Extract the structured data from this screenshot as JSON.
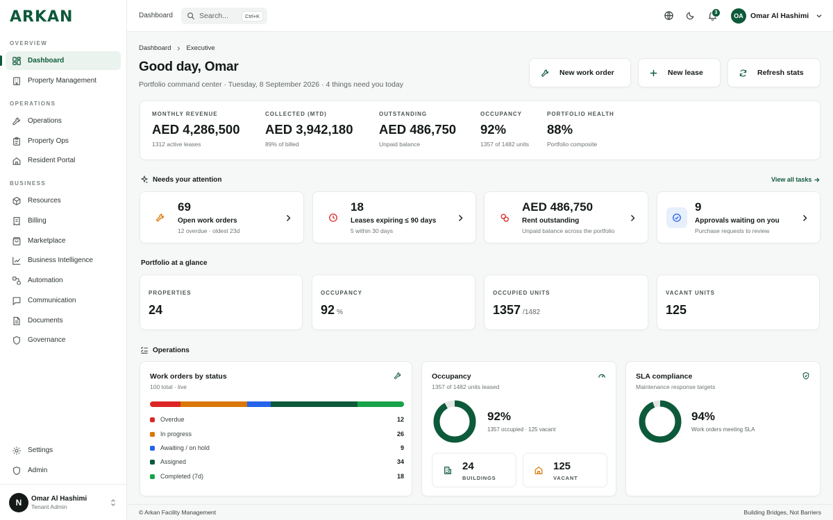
{
  "brand": {
    "name": "ARKAN",
    "accent": "#0d5a3b"
  },
  "sidebar": {
    "sections": [
      {
        "label": "OVERVIEW"
      },
      {
        "label": "OPERATIONS"
      },
      {
        "label": "BUSINESS"
      }
    ],
    "items": [
      {
        "label": "Dashboard",
        "icon": "dashboard-icon",
        "active": true
      },
      {
        "label": "Property Management",
        "icon": "building-icon"
      },
      {
        "label": "Operations",
        "icon": "wrench-icon"
      },
      {
        "label": "Property Ops",
        "icon": "clipboard-icon"
      },
      {
        "label": "Resident Portal",
        "icon": "home-icon"
      },
      {
        "label": "Resources",
        "icon": "box-icon"
      },
      {
        "label": "Billing",
        "icon": "receipt-icon"
      },
      {
        "label": "Marketplace",
        "icon": "shopping-bag-icon"
      },
      {
        "label": "Business Intelligence",
        "icon": "line-chart-icon"
      },
      {
        "label": "Automation",
        "icon": "workflow-icon"
      },
      {
        "label": "Communication",
        "icon": "message-icon"
      },
      {
        "label": "Documents",
        "icon": "document-icon"
      },
      {
        "label": "Governance",
        "icon": "shield-icon"
      },
      {
        "label": "Settings",
        "icon": "gear-icon"
      },
      {
        "label": "Admin",
        "icon": "admin-shield-icon"
      }
    ],
    "user": {
      "initial": "N",
      "name": "Omar Al Hashimi",
      "role": "Tenant Admin"
    }
  },
  "topbar": {
    "breadcrumb": "Dashboard",
    "search": {
      "placeholder": "Search...",
      "shortcut": "Ctrl+K"
    },
    "notifications": "3",
    "user": {
      "initials": "OA",
      "name": "Omar Al Hashimi"
    }
  },
  "header": {
    "breadcrumb": [
      "Dashboard",
      "Executive"
    ],
    "title": "Good day, Omar",
    "subtitle": "Portfolio command center · Tuesday, 8 September 2026 · 4 things need you today",
    "actions": [
      "New work order",
      "New lease",
      "Refresh stats"
    ]
  },
  "kpis": [
    {
      "label": "MONTHLY REVENUE",
      "value": "AED 4,286,500",
      "sub": "1312 active leases"
    },
    {
      "label": "COLLECTED (MTD)",
      "value": "AED 3,942,180",
      "sub": "89% of billed"
    },
    {
      "label": "OUTSTANDING",
      "value": "AED 486,750",
      "sub": "Unpaid balance"
    },
    {
      "label": "OCCUPANCY",
      "value": "92%",
      "sub": "1357 of 1482 units"
    },
    {
      "label": "PORTFOLIO HEALTH",
      "value": "88%",
      "sub": "Portfolio composite"
    }
  ],
  "attention": {
    "title": "Needs your attention",
    "view_all": "View all tasks",
    "cards": [
      {
        "value": "69",
        "title": "Open work orders",
        "sub": "12 overdue · oldest 23d",
        "icon": "wrench-icon",
        "color": "#d97706"
      },
      {
        "value": "18",
        "title": "Leases expiring ≤ 90 days",
        "sub": "5 within 30 days",
        "icon": "clock-icon",
        "color": "#dc2626"
      },
      {
        "value": "AED 486,750",
        "title": "Rent outstanding",
        "sub": "Unpaid balance across the portfolio",
        "icon": "coins-icon",
        "color": "#dc2626"
      },
      {
        "value": "9",
        "title": "Approvals waiting on you",
        "sub": "Purchase requests to review",
        "icon": "check-circle-icon",
        "color": "#2563eb"
      }
    ]
  },
  "glance": {
    "title": "Portfolio at a glance",
    "cards": [
      {
        "label": "PROPERTIES",
        "value": "24",
        "suffix": ""
      },
      {
        "label": "OCCUPANCY",
        "value": "92",
        "suffix": "%"
      },
      {
        "label": "OCCUPIED UNITS",
        "value": "1357",
        "suffix": "/1482"
      },
      {
        "label": "VACANT UNITS",
        "value": "125",
        "suffix": ""
      }
    ]
  },
  "operations": {
    "title": "Operations",
    "work_orders": {
      "title": "Work orders by status",
      "sub": "100 total · live",
      "rows": [
        {
          "label": "Overdue",
          "count": 12,
          "color": "#dc2626"
        },
        {
          "label": "In progress",
          "count": 26,
          "color": "#d97706"
        },
        {
          "label": "Awaiting / on hold",
          "count": 9,
          "color": "#2563eb"
        },
        {
          "label": "Assigned",
          "count": 34,
          "color": "#0d5a3b"
        },
        {
          "label": "Completed (7d)",
          "count": 18,
          "color": "#16a34a"
        }
      ]
    },
    "occupancy": {
      "title": "Occupancy",
      "sub": "1357 of 1482 units leased",
      "percent": 92,
      "value": "92%",
      "detail": "1357 occupied · 125 vacant",
      "minis": [
        {
          "value": "24",
          "label": "BUILDINGS",
          "icon": "buildings-icon",
          "color": "#0d5a3b"
        },
        {
          "value": "125",
          "label": "VACANT",
          "icon": "home-vacant-icon",
          "color": "#d97706"
        }
      ]
    },
    "sla": {
      "title": "SLA compliance",
      "sub": "Maintenance response targets",
      "percent": 94,
      "value": "94%",
      "detail": "Work orders meeting SLA"
    }
  },
  "footer": {
    "left": "© Arkan Facility Management",
    "right": "Building Bridges, Not Barriers"
  }
}
